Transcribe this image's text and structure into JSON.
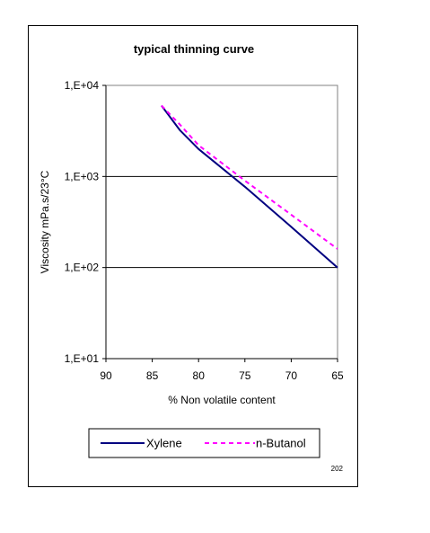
{
  "chart_data": {
    "type": "line",
    "title": "typical thinning curve",
    "xlabel": "% Non volatile content",
    "ylabel": "Viscosity mPa.s/23°C",
    "x_axis": {
      "min": 90,
      "max": 65,
      "reversed": true,
      "ticks": [
        90,
        85,
        80,
        75,
        70,
        65
      ]
    },
    "y_axis": {
      "scale": "log",
      "min": 10,
      "max": 10000,
      "ticks": [
        {
          "value": 10000,
          "label": "1,E+04"
        },
        {
          "value": 1000,
          "label": "1,E+03"
        },
        {
          "value": 100,
          "label": "1,E+02"
        },
        {
          "value": 10,
          "label": "1,E+01"
        }
      ]
    },
    "grid": {
      "horizontal": true,
      "vertical": false
    },
    "legend": {
      "position": "bottom"
    },
    "series": [
      {
        "name": "Xylene",
        "color": "#000080",
        "style": "solid",
        "x": [
          84,
          82,
          80,
          75,
          70,
          65
        ],
        "y": [
          6000,
          3200,
          2000,
          770,
          280,
          100
        ]
      },
      {
        "name": "n-Butanol",
        "color": "#ff00ff",
        "style": "dashed",
        "x": [
          84,
          82,
          80,
          75,
          70,
          65
        ],
        "y": [
          6000,
          3700,
          2200,
          900,
          380,
          160
        ]
      }
    ],
    "note": "202"
  }
}
